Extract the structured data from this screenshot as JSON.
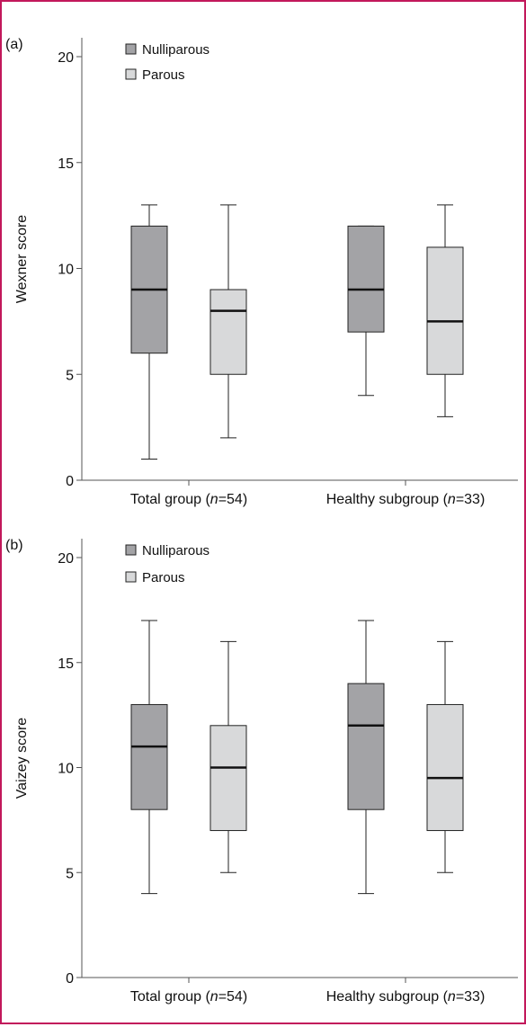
{
  "colors": {
    "frame": "#c2185b",
    "nulliparous": "#a3a3a6",
    "parous": "#d8d9da",
    "stroke": "#222222"
  },
  "legend": {
    "nulliparous": "Nulliparous",
    "parous": "Parous"
  },
  "chart_data": [
    {
      "type": "box",
      "panel_label": "(a)",
      "ylabel": "Wexner score",
      "ylim": [
        0,
        21
      ],
      "yticks": [
        0,
        5,
        10,
        15,
        20
      ],
      "categories": [
        {
          "name": "Total group (",
          "n_symbol": "n",
          "n_value": "=54)"
        },
        {
          "name": "Healthy subgroup (",
          "n_symbol": "n",
          "n_value": "=33)"
        }
      ],
      "series": [
        {
          "name": "Nulliparous",
          "boxes": [
            {
              "min": 1,
              "q1": 6,
              "median": 9,
              "q3": 12,
              "max": 13
            },
            {
              "min": 4,
              "q1": 7,
              "median": 9,
              "q3": 12,
              "max": 12
            }
          ]
        },
        {
          "name": "Parous",
          "boxes": [
            {
              "min": 2,
              "q1": 5,
              "median": 8,
              "q3": 9,
              "max": 13
            },
            {
              "min": 3,
              "q1": 5,
              "median": 7.5,
              "q3": 11,
              "max": 13
            }
          ]
        }
      ]
    },
    {
      "type": "box",
      "panel_label": "(b)",
      "ylabel": "Vaizey score",
      "ylim": [
        0,
        21
      ],
      "yticks": [
        0,
        5,
        10,
        15,
        20
      ],
      "categories": [
        {
          "name": "Total group (",
          "n_symbol": "n",
          "n_value": "=54)"
        },
        {
          "name": "Healthy subgroup (",
          "n_symbol": "n",
          "n_value": "=33)"
        }
      ],
      "series": [
        {
          "name": "Nulliparous",
          "boxes": [
            {
              "min": 4,
              "q1": 8,
              "median": 11,
              "q3": 13,
              "max": 17
            },
            {
              "min": 4,
              "q1": 8,
              "median": 12,
              "q3": 14,
              "max": 17
            }
          ]
        },
        {
          "name": "Parous",
          "boxes": [
            {
              "min": 5,
              "q1": 7,
              "median": 10,
              "q3": 12,
              "max": 16
            },
            {
              "min": 5,
              "q1": 7,
              "median": 9.5,
              "q3": 13,
              "max": 16
            }
          ]
        }
      ]
    }
  ]
}
